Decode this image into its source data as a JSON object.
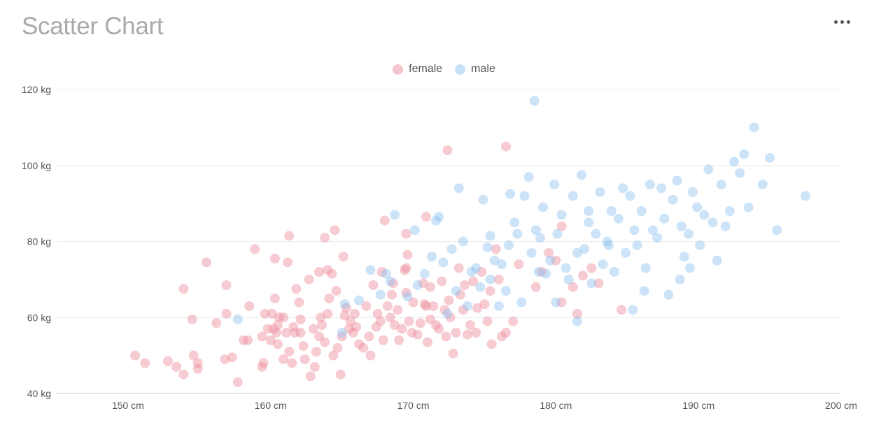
{
  "title": "Scatter Chart",
  "menu_icon": "more-horizontal-icon",
  "colors": {
    "female": "#ee8b9b",
    "male": "#8fc0ef"
  },
  "chart_data": {
    "type": "scatter",
    "title": "Scatter Chart",
    "legend_position": "top-center",
    "grid": "horizontal",
    "xlim": [
      145,
      200
    ],
    "ylim": [
      40,
      120
    ],
    "x_ticks": [
      150,
      160,
      170,
      180,
      190,
      200
    ],
    "y_ticks": [
      40,
      60,
      80,
      100,
      120
    ],
    "x_tick_labels": [
      "150 cm",
      "160 cm",
      "170 cm",
      "180 cm",
      "190 cm",
      "200 cm"
    ],
    "y_tick_labels": [
      "40 kg",
      "60 kg",
      "80 kg",
      "100 kg",
      "120 kg"
    ],
    "series": [
      {
        "name": "female",
        "color": "#ee8b9b",
        "points": [
          [
            150.5,
            50
          ],
          [
            151.2,
            48
          ],
          [
            152.8,
            48.5
          ],
          [
            153.4,
            47
          ],
          [
            153.9,
            45
          ],
          [
            154.6,
            50
          ],
          [
            154.9,
            46.5
          ],
          [
            154.9,
            48
          ],
          [
            153.9,
            67.5
          ],
          [
            154.5,
            59.5
          ],
          [
            155.5,
            74.5
          ],
          [
            156.2,
            58.5
          ],
          [
            156.8,
            49
          ],
          [
            156.9,
            61
          ],
          [
            156.9,
            68.5
          ],
          [
            157.3,
            49.5
          ],
          [
            157.7,
            43
          ],
          [
            158.1,
            54
          ],
          [
            158.4,
            54
          ],
          [
            158.5,
            63
          ],
          [
            158.9,
            78
          ],
          [
            159.4,
            47
          ],
          [
            159.4,
            55
          ],
          [
            159.5,
            48
          ],
          [
            159.6,
            61
          ],
          [
            159.8,
            57
          ],
          [
            160,
            54
          ],
          [
            160.1,
            61
          ],
          [
            160.2,
            57
          ],
          [
            160.3,
            65
          ],
          [
            160.3,
            75.5
          ],
          [
            160.4,
            56
          ],
          [
            160.5,
            53
          ],
          [
            160.5,
            58
          ],
          [
            160.6,
            60
          ],
          [
            160.9,
            60
          ],
          [
            160.9,
            49
          ],
          [
            161.1,
            56
          ],
          [
            161.3,
            51
          ],
          [
            161.5,
            48
          ],
          [
            161.6,
            57.5
          ],
          [
            161.7,
            56
          ],
          [
            161.8,
            67.5
          ],
          [
            162,
            64
          ],
          [
            162.1,
            59.5
          ],
          [
            162.1,
            56
          ],
          [
            162.3,
            52.5
          ],
          [
            162.4,
            49
          ],
          [
            161.3,
            81.5
          ],
          [
            161.2,
            74.5
          ],
          [
            162.7,
            70
          ],
          [
            162.8,
            44.5
          ],
          [
            163,
            57
          ],
          [
            163.1,
            47
          ],
          [
            163.2,
            51
          ],
          [
            163.4,
            55
          ],
          [
            163.5,
            60
          ],
          [
            163.6,
            58
          ],
          [
            163.8,
            53.5
          ],
          [
            164,
            61
          ],
          [
            164.1,
            65
          ],
          [
            164,
            72.5
          ],
          [
            163.4,
            72
          ],
          [
            163.8,
            81
          ],
          [
            164.5,
            83
          ],
          [
            164.3,
            71.5
          ],
          [
            164.6,
            67
          ],
          [
            164.4,
            50
          ],
          [
            164.7,
            52
          ],
          [
            164.9,
            45
          ],
          [
            165,
            55
          ],
          [
            165.2,
            60.5
          ],
          [
            165.3,
            62.5
          ],
          [
            165.5,
            57
          ],
          [
            165.6,
            59
          ],
          [
            165.1,
            76
          ],
          [
            165.8,
            56
          ],
          [
            165.9,
            61
          ],
          [
            166,
            57.5
          ],
          [
            166.2,
            53
          ],
          [
            166.5,
            52
          ],
          [
            166.7,
            63
          ],
          [
            167,
            50
          ],
          [
            166.9,
            55
          ],
          [
            167.2,
            68.5
          ],
          [
            167.4,
            57.5
          ],
          [
            167.5,
            61
          ],
          [
            167.7,
            59
          ],
          [
            167.8,
            72
          ],
          [
            167.9,
            54
          ],
          [
            168.2,
            63
          ],
          [
            168.4,
            60
          ],
          [
            168.5,
            66
          ],
          [
            168,
            85.5
          ],
          [
            168.6,
            69
          ],
          [
            168.7,
            58
          ],
          [
            168.9,
            62
          ],
          [
            169,
            54
          ],
          [
            169.2,
            57
          ],
          [
            169.4,
            72.5
          ],
          [
            169.5,
            66.5
          ],
          [
            169.5,
            73
          ],
          [
            169.6,
            76.5
          ],
          [
            169.7,
            59
          ],
          [
            169.9,
            56
          ],
          [
            170,
            64
          ],
          [
            169.5,
            82
          ],
          [
            170.3,
            55.5
          ],
          [
            170.5,
            58.5
          ],
          [
            170.7,
            69
          ],
          [
            170.8,
            63.5
          ],
          [
            170.9,
            86.5
          ],
          [
            171,
            53.5
          ],
          [
            171.2,
            59.5
          ],
          [
            171.4,
            63
          ],
          [
            171.6,
            58
          ],
          [
            171.8,
            57
          ],
          [
            172,
            69.5
          ],
          [
            172.2,
            62
          ],
          [
            172.3,
            55
          ],
          [
            172.5,
            64.5
          ],
          [
            172.6,
            60
          ],
          [
            172.8,
            50.5
          ],
          [
            173,
            56
          ],
          [
            173.2,
            73
          ],
          [
            173.3,
            66
          ],
          [
            173.5,
            62
          ],
          [
            173.6,
            68.5
          ],
          [
            173.8,
            55.5
          ],
          [
            174,
            58
          ],
          [
            174.2,
            69.5
          ],
          [
            174.4,
            56
          ],
          [
            174.5,
            62.5
          ],
          [
            174.8,
            72
          ],
          [
            175,
            63.5
          ],
          [
            175.2,
            59
          ],
          [
            175.4,
            67
          ],
          [
            175.5,
            53
          ],
          [
            175.8,
            78
          ],
          [
            176,
            70
          ],
          [
            176.2,
            55
          ],
          [
            176.5,
            56
          ],
          [
            177,
            59
          ],
          [
            177.4,
            74
          ],
          [
            176.5,
            105
          ],
          [
            172.4,
            104
          ],
          [
            180.4,
            84
          ],
          [
            178.6,
            68
          ],
          [
            179,
            72
          ],
          [
            179.5,
            77
          ],
          [
            180,
            75
          ],
          [
            180.4,
            64
          ],
          [
            181.2,
            68
          ],
          [
            181.5,
            61
          ],
          [
            183,
            69
          ],
          [
            184.6,
            62
          ],
          [
            181.9,
            71
          ],
          [
            182.5,
            73
          ],
          [
            171.2,
            68
          ],
          [
            170.9,
            63
          ]
        ]
      },
      {
        "name": "male",
        "color": "#8fc0ef",
        "points": [
          [
            157.7,
            59.5
          ],
          [
            165,
            56
          ],
          [
            165.2,
            63.5
          ],
          [
            166.2,
            64.5
          ],
          [
            167,
            72.5
          ],
          [
            167.7,
            66
          ],
          [
            168.1,
            71.5
          ],
          [
            168.4,
            69.5
          ],
          [
            168.7,
            87
          ],
          [
            169.6,
            65.5
          ],
          [
            170.1,
            83
          ],
          [
            170.3,
            68.5
          ],
          [
            170.8,
            71.5
          ],
          [
            171.3,
            76
          ],
          [
            171.6,
            85.5
          ],
          [
            171.8,
            86.5
          ],
          [
            172.1,
            74.5
          ],
          [
            172.4,
            61
          ],
          [
            172.7,
            78
          ],
          [
            173,
            67
          ],
          [
            173.2,
            94
          ],
          [
            173.5,
            80
          ],
          [
            173.8,
            63
          ],
          [
            174.1,
            72
          ],
          [
            174.4,
            73
          ],
          [
            174.7,
            68
          ],
          [
            174.9,
            91
          ],
          [
            175.2,
            78.5
          ],
          [
            175.4,
            70
          ],
          [
            175.7,
            75
          ],
          [
            176,
            63
          ],
          [
            176.2,
            74
          ],
          [
            176.5,
            67
          ],
          [
            176.8,
            92.5
          ],
          [
            177.1,
            85
          ],
          [
            177.3,
            82
          ],
          [
            177.6,
            64
          ],
          [
            177.8,
            92
          ],
          [
            178.1,
            97
          ],
          [
            178.3,
            77
          ],
          [
            178.6,
            83
          ],
          [
            178.8,
            72
          ],
          [
            179.1,
            89
          ],
          [
            179.3,
            71.5
          ],
          [
            179.6,
            75
          ],
          [
            179.9,
            95
          ],
          [
            180.1,
            82
          ],
          [
            180.4,
            87
          ],
          [
            180.7,
            73
          ],
          [
            180.9,
            70
          ],
          [
            181.2,
            92
          ],
          [
            181.5,
            59
          ],
          [
            181.8,
            97.5
          ],
          [
            182,
            78
          ],
          [
            182.3,
            88
          ],
          [
            182.5,
            69
          ],
          [
            182.8,
            82
          ],
          [
            183.1,
            93
          ],
          [
            183.3,
            74
          ],
          [
            183.6,
            80
          ],
          [
            183.9,
            88
          ],
          [
            184.1,
            72
          ],
          [
            184.4,
            86
          ],
          [
            184.7,
            94
          ],
          [
            184.9,
            77
          ],
          [
            185.2,
            92
          ],
          [
            185.5,
            83
          ],
          [
            185.7,
            79
          ],
          [
            186,
            88
          ],
          [
            186.3,
            73
          ],
          [
            186.6,
            95
          ],
          [
            186.8,
            83
          ],
          [
            187.1,
            81
          ],
          [
            187.4,
            94
          ],
          [
            187.6,
            86
          ],
          [
            187.9,
            66
          ],
          [
            188.2,
            91
          ],
          [
            188.5,
            96
          ],
          [
            188.8,
            84
          ],
          [
            189,
            76
          ],
          [
            189.3,
            82
          ],
          [
            189.6,
            93
          ],
          [
            189.9,
            89
          ],
          [
            190.1,
            79
          ],
          [
            190.4,
            87
          ],
          [
            190.7,
            99
          ],
          [
            191,
            85
          ],
          [
            191.3,
            75
          ],
          [
            191.6,
            95
          ],
          [
            191.9,
            84
          ],
          [
            192.2,
            88
          ],
          [
            192.5,
            101
          ],
          [
            192.9,
            98
          ],
          [
            193.2,
            103
          ],
          [
            193.5,
            89
          ],
          [
            193.9,
            110
          ],
          [
            194.5,
            95
          ],
          [
            195,
            102
          ],
          [
            195.5,
            83
          ],
          [
            197.5,
            92
          ],
          [
            178.5,
            117
          ],
          [
            185.4,
            62
          ],
          [
            188.7,
            70
          ],
          [
            180,
            64
          ],
          [
            181.5,
            77
          ],
          [
            182.3,
            85
          ],
          [
            183.7,
            79
          ],
          [
            178.9,
            81
          ],
          [
            176.7,
            79
          ],
          [
            175.4,
            81.5
          ],
          [
            186.2,
            67
          ],
          [
            189.4,
            73
          ]
        ]
      }
    ]
  }
}
